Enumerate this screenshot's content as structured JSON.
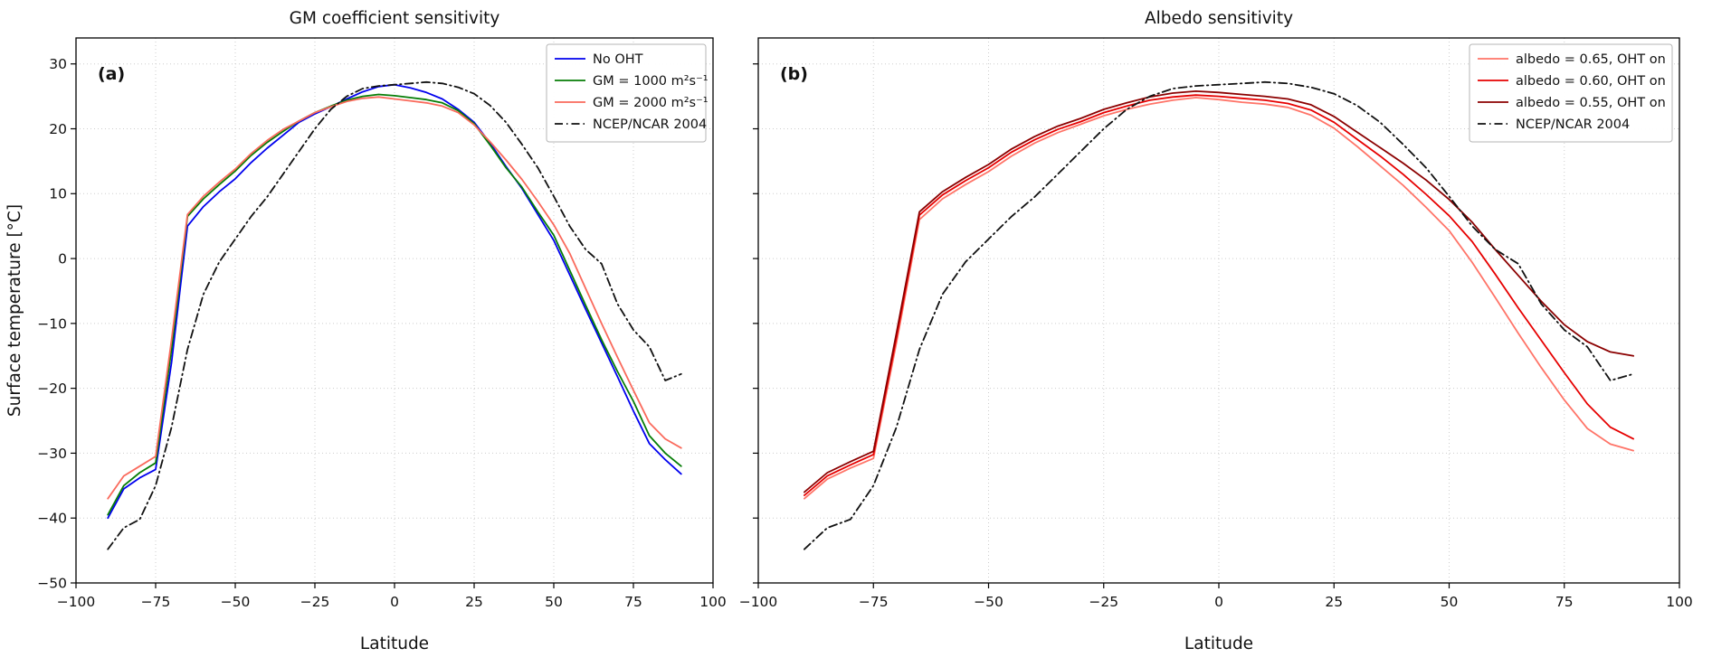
{
  "figure": {
    "description": "Two-panel line chart of zonal-mean surface temperature vs latitude"
  },
  "chart_data": [
    {
      "type": "line",
      "panel": "a",
      "panel_label": "(a)",
      "title": "GM coefficient sensitivity",
      "xlabel": "Latitude",
      "ylabel": "Surface temperature [°C]",
      "xlim": [
        -100,
        100
      ],
      "ylim": [
        -50,
        34
      ],
      "xticks": [
        -100,
        -75,
        -50,
        -25,
        0,
        25,
        50,
        75,
        100
      ],
      "yticks": [
        -50,
        -40,
        -30,
        -20,
        -10,
        0,
        10,
        20,
        30
      ],
      "grid": true,
      "legend_position": "upper right",
      "x": [
        -90,
        -85,
        -80,
        -75,
        -70,
        -65,
        -60,
        -55,
        -50,
        -45,
        -40,
        -35,
        -30,
        -25,
        -20,
        -15,
        -10,
        -5,
        0,
        5,
        10,
        15,
        20,
        25,
        30,
        35,
        40,
        45,
        50,
        55,
        60,
        65,
        70,
        75,
        80,
        85,
        90
      ],
      "series": [
        {
          "key": "no-oht",
          "name": "No OHT",
          "color": "#0000ee",
          "dash": false,
          "values": [
            -40,
            -35.5,
            -33.8,
            -32.5,
            -16,
            5,
            8,
            10.3,
            12.3,
            14.8,
            17,
            19,
            21,
            22.3,
            23.4,
            24.6,
            25.7,
            26.5,
            26.8,
            26.3,
            25.6,
            24.6,
            23,
            21,
            17.8,
            14.2,
            10.8,
            6.8,
            2.8,
            -2.5,
            -7.8,
            -13,
            -18.2,
            -23.5,
            -28.5,
            -31,
            -33.2
          ]
        },
        {
          "key": "gm-1000",
          "name": "GM = 1000 m²s⁻¹",
          "color": "#067d06",
          "dash": false,
          "values": [
            -39.5,
            -35,
            -33,
            -31.5,
            -14,
            6.5,
            9.2,
            11.4,
            13.5,
            15.9,
            17.9,
            19.6,
            21.2,
            22.5,
            23.5,
            24.4,
            25,
            25.3,
            25.1,
            24.8,
            24.5,
            24,
            22.8,
            20.8,
            17.5,
            14,
            11,
            7.2,
            3.6,
            -1.8,
            -7.2,
            -12.5,
            -17.4,
            -22,
            -27.3,
            -30,
            -32
          ]
        },
        {
          "key": "gm-2000",
          "name": "GM = 2000 m²s⁻¹",
          "color": "#fa6a5c",
          "dash": false,
          "values": [
            -37,
            -33.5,
            -32,
            -30.5,
            -12.5,
            6.8,
            9.6,
            11.8,
            13.8,
            16.2,
            18.2,
            19.9,
            21.2,
            22.5,
            23.4,
            24.2,
            24.7,
            24.9,
            24.6,
            24.3,
            24,
            23.5,
            22.5,
            20.6,
            18,
            15.2,
            12.2,
            8.8,
            5.2,
            0.8,
            -4.6,
            -10,
            -15.2,
            -20.3,
            -25.3,
            -27.8,
            -29.2
          ]
        },
        {
          "key": "ncep-ncar-2004",
          "name": "NCEP/NCAR 2004",
          "color": "#111111",
          "dash": true,
          "values": [
            -44.8,
            -41.5,
            -40.2,
            -35,
            -26,
            -14,
            -5.5,
            -0.5,
            3,
            6.5,
            9.5,
            13,
            16.5,
            20,
            23,
            25,
            26.2,
            26.6,
            26.8,
            27,
            27.2,
            27,
            26.4,
            25.4,
            23.6,
            21,
            17.6,
            14,
            9.6,
            5,
            1.4,
            -0.8,
            -7,
            -11,
            -13.6,
            -18.8,
            -17.8
          ]
        }
      ]
    },
    {
      "type": "line",
      "panel": "b",
      "panel_label": "(b)",
      "title": "Albedo sensitivity",
      "xlabel": "Latitude",
      "ylabel": "",
      "xlim": [
        -100,
        100
      ],
      "ylim": [
        -50,
        34
      ],
      "xticks": [
        -100,
        -75,
        -50,
        -25,
        0,
        25,
        50,
        75,
        100
      ],
      "yticks": [
        -50,
        -40,
        -30,
        -20,
        -10,
        0,
        10,
        20,
        30
      ],
      "grid": true,
      "legend_position": "upper right",
      "x": [
        -90,
        -85,
        -80,
        -75,
        -70,
        -65,
        -60,
        -55,
        -50,
        -45,
        -40,
        -35,
        -30,
        -25,
        -20,
        -15,
        -10,
        -5,
        0,
        5,
        10,
        15,
        20,
        25,
        30,
        35,
        40,
        45,
        50,
        55,
        60,
        65,
        70,
        75,
        80,
        85,
        90
      ],
      "series": [
        {
          "key": "albedo-065",
          "name": "albedo = 0.65, OHT on",
          "color": "#ff7468",
          "dash": false,
          "values": [
            -37,
            -34,
            -32.3,
            -30.8,
            -13,
            6,
            9.2,
            11.4,
            13.4,
            15.8,
            17.8,
            19.4,
            20.7,
            22,
            23,
            23.8,
            24.4,
            24.8,
            24.5,
            24.1,
            23.8,
            23.3,
            22.1,
            20.1,
            17.3,
            14.3,
            11.3,
            7.9,
            4.3,
            -0.6,
            -6,
            -11.5,
            -16.8,
            -21.8,
            -26.2,
            -28.6,
            -29.6
          ]
        },
        {
          "key": "albedo-060",
          "name": "albedo = 0.60, OHT on",
          "color": "#e60000",
          "dash": false,
          "values": [
            -36.5,
            -33.5,
            -31.8,
            -30.2,
            -12.2,
            6.7,
            9.8,
            12,
            14,
            16.4,
            18.3,
            19.9,
            21.1,
            22.5,
            23.5,
            24.4,
            24.9,
            25.2,
            25,
            24.7,
            24.4,
            23.9,
            22.9,
            21,
            18.4,
            15.8,
            13,
            9.9,
            6.6,
            2.6,
            -2.4,
            -7.6,
            -12.6,
            -17.6,
            -22.4,
            -26,
            -27.8
          ]
        },
        {
          "key": "albedo-055",
          "name": "albedo = 0.55, OHT on",
          "color": "#8b0000",
          "dash": false,
          "values": [
            -36,
            -33,
            -31.3,
            -29.7,
            -11.5,
            7.2,
            10.3,
            12.5,
            14.5,
            16.9,
            18.8,
            20.4,
            21.6,
            23,
            24,
            24.9,
            25.5,
            25.8,
            25.6,
            25.3,
            25,
            24.6,
            23.7,
            21.9,
            19.5,
            17.1,
            14.7,
            12.1,
            9.1,
            5.6,
            1.4,
            -2.6,
            -6.6,
            -10.2,
            -12.8,
            -14.4,
            -15
          ]
        },
        {
          "key": "ncep-ncar-2004",
          "name": "NCEP/NCAR 2004",
          "color": "#111111",
          "dash": true,
          "values": [
            -44.8,
            -41.5,
            -40.2,
            -35,
            -26,
            -14,
            -5.5,
            -0.5,
            3,
            6.5,
            9.5,
            13,
            16.5,
            20,
            23,
            25,
            26.2,
            26.6,
            26.8,
            27,
            27.2,
            27,
            26.4,
            25.4,
            23.6,
            21,
            17.6,
            14,
            9.6,
            5,
            1.4,
            -0.8,
            -7,
            -11,
            -13.6,
            -18.8,
            -17.8
          ]
        }
      ]
    }
  ]
}
